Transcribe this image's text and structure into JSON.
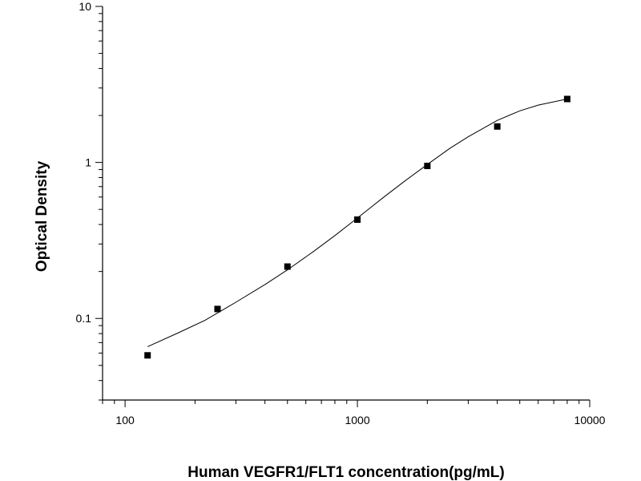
{
  "chart_data": {
    "type": "scatter",
    "title": "",
    "xlabel": "Human VEGFR1/FLT1 concentration(pg/mL)",
    "ylabel": "Optical Density",
    "xscale": "log",
    "yscale": "log",
    "xlim": [
      80,
      10000
    ],
    "ylim": [
      0.03,
      10
    ],
    "grid": false,
    "legend": "none",
    "x_ticks": [
      {
        "value": 100,
        "label": "100"
      },
      {
        "value": 1000,
        "label": "1000"
      },
      {
        "value": 10000,
        "label": "10000"
      }
    ],
    "y_ticks": [
      {
        "value": 0.1,
        "label": "0.1"
      },
      {
        "value": 1,
        "label": "1"
      },
      {
        "value": 10,
        "label": "10"
      }
    ],
    "points": {
      "x": [
        125,
        250,
        500,
        1000,
        2000,
        4000,
        8000
      ],
      "y": [
        0.058,
        0.115,
        0.215,
        0.43,
        0.95,
        1.7,
        2.55
      ]
    },
    "fit_curve": {
      "x": [
        125,
        170,
        220,
        300,
        400,
        500,
        650,
        800,
        1000,
        1300,
        1600,
        2000,
        2500,
        3000,
        4000,
        5000,
        6000,
        8000
      ],
      "y": [
        0.066,
        0.081,
        0.097,
        0.127,
        0.165,
        0.205,
        0.27,
        0.34,
        0.44,
        0.6,
        0.76,
        0.97,
        1.23,
        1.46,
        1.86,
        2.14,
        2.33,
        2.55
      ]
    },
    "colors": {
      "marker": "#000000",
      "line": "#000000",
      "axis": "#000000"
    }
  }
}
